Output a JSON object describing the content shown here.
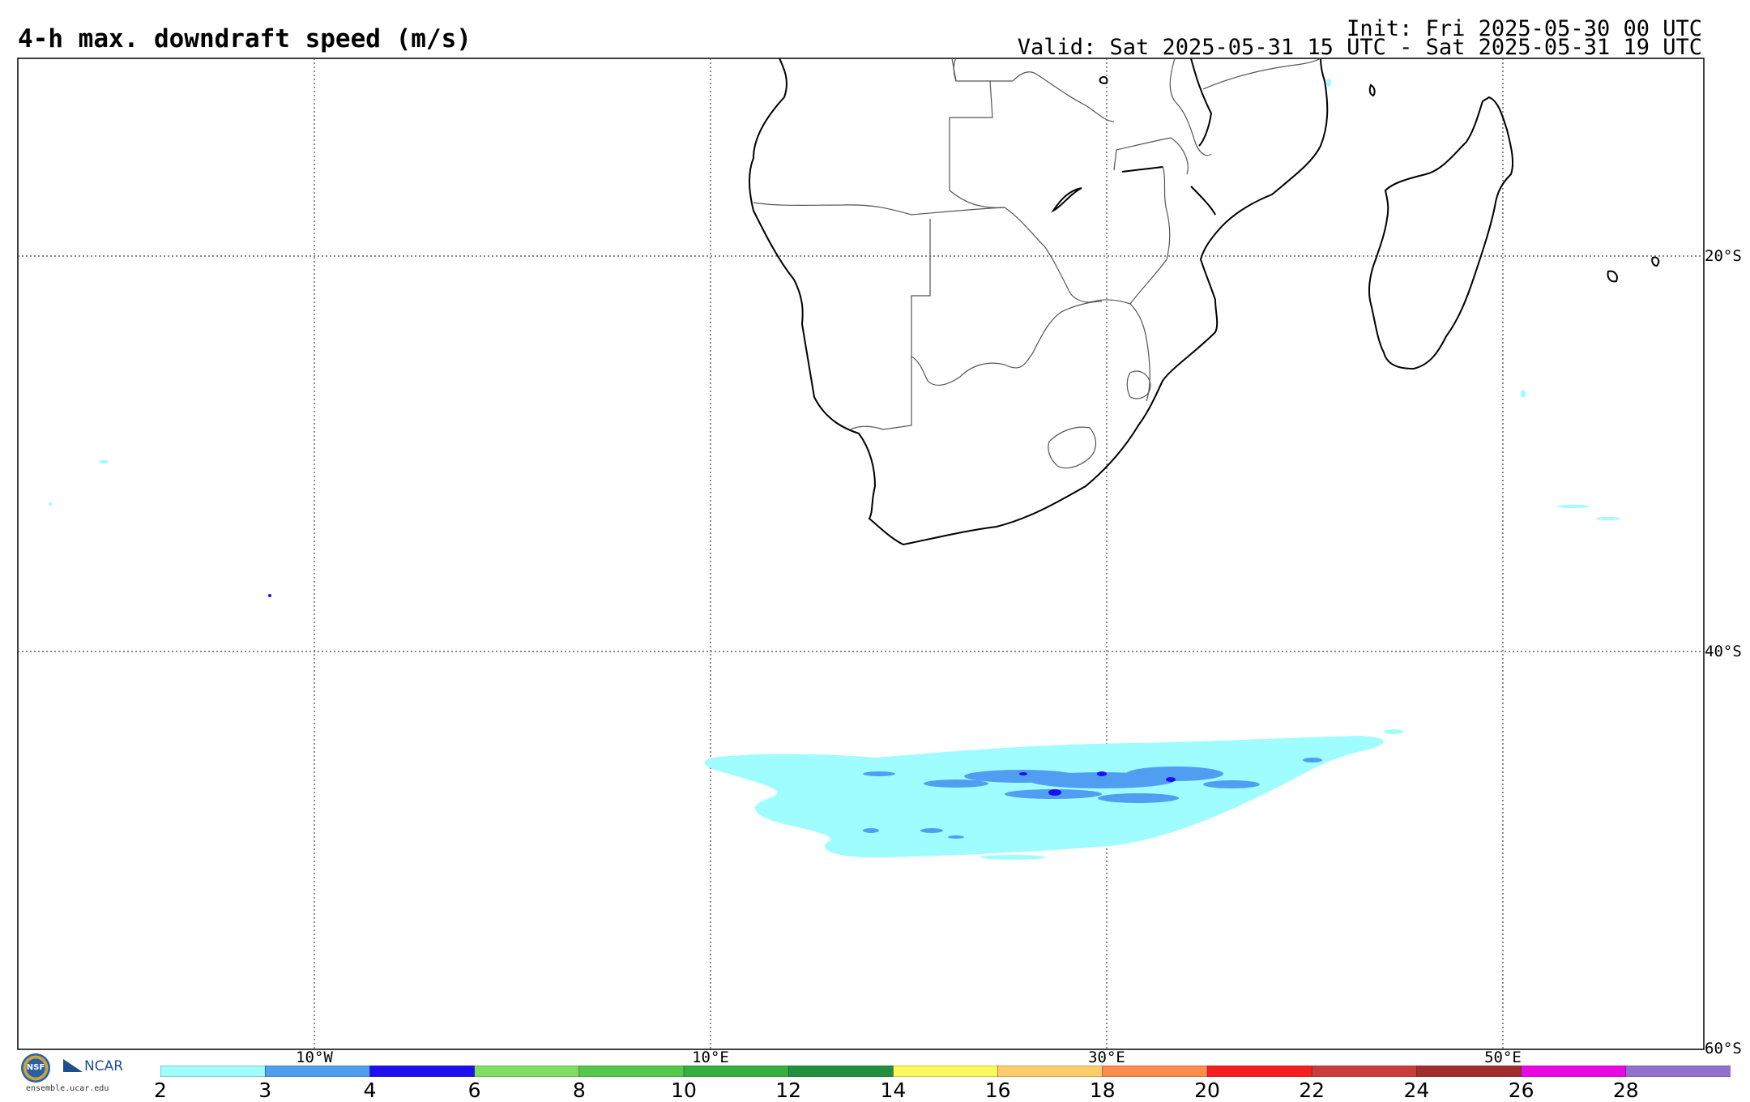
{
  "header": {
    "title": "4-h max. downdraft speed (m/s)",
    "init": "Init: Fri 2025-05-30 00 UTC",
    "valid": "Valid: Sat 2025-05-31 15 UTC - Sat 2025-05-31 19 UTC"
  },
  "map": {
    "lon_labels": [
      "10°W",
      "10°E",
      "30°E",
      "50°E"
    ],
    "lat_labels": [
      "20°S",
      "40°S",
      "60°S"
    ],
    "gridlines": "dotted"
  },
  "colorbar": {
    "ticks": [
      "2",
      "3",
      "4",
      "6",
      "8",
      "10",
      "12",
      "14",
      "16",
      "18",
      "20",
      "22",
      "24",
      "26",
      "28"
    ],
    "colors": [
      "#9ffcff",
      "#4f9ef2",
      "#1e0ff0",
      "#7fde61",
      "#56c94a",
      "#35b040",
      "#21903d",
      "#fdf95d",
      "#fecd6a",
      "#fc8b4c",
      "#f71e1e",
      "#c93c3c",
      "#a12d2d",
      "#ea07e3",
      "#9370ce"
    ]
  },
  "footer": {
    "nsf": "NSF",
    "ncar": "NCAR",
    "site": "ensemble.ucar.edu"
  }
}
